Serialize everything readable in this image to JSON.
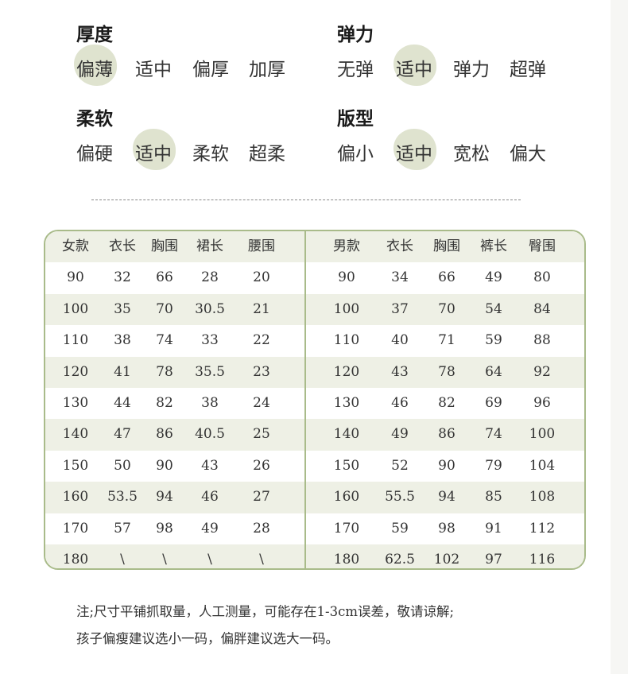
{
  "attributes": [
    {
      "title": "厚度",
      "options": [
        "偏薄",
        "适中",
        "偏厚",
        "加厚"
      ],
      "selected": 0
    },
    {
      "title": "弹力",
      "options": [
        "无弹",
        "适中",
        "弹力",
        "超弹"
      ],
      "selected": 1
    },
    {
      "title": "柔软",
      "options": [
        "偏硬",
        "适中",
        "柔软",
        "超柔"
      ],
      "selected": 1
    },
    {
      "title": "版型",
      "options": [
        "偏小",
        "适中",
        "宽松",
        "偏大"
      ],
      "selected": 1
    }
  ],
  "colors": {
    "highlight": "#dfe3cf",
    "border": "#a9bb8a",
    "stripe": "#eef0e5"
  },
  "women": {
    "headers": [
      "女款",
      "衣长",
      "胸围",
      "裙长",
      "腰围"
    ],
    "rows": [
      [
        "90",
        "32",
        "66",
        "28",
        "20"
      ],
      [
        "100",
        "35",
        "70",
        "30.5",
        "21"
      ],
      [
        "110",
        "38",
        "74",
        "33",
        "22"
      ],
      [
        "120",
        "41",
        "78",
        "35.5",
        "23"
      ],
      [
        "130",
        "44",
        "82",
        "38",
        "24"
      ],
      [
        "140",
        "47",
        "86",
        "40.5",
        "25"
      ],
      [
        "150",
        "50",
        "90",
        "43",
        "26"
      ],
      [
        "160",
        "53.5",
        "94",
        "46",
        "27"
      ],
      [
        "170",
        "57",
        "98",
        "49",
        "28"
      ],
      [
        "180",
        "\\",
        "\\",
        "\\",
        "\\"
      ]
    ]
  },
  "men": {
    "headers": [
      "男款",
      "衣长",
      "胸围",
      "裤长",
      "臀围"
    ],
    "rows": [
      [
        "90",
        "34",
        "66",
        "49",
        "80"
      ],
      [
        "100",
        "37",
        "70",
        "54",
        "84"
      ],
      [
        "110",
        "40",
        "71",
        "59",
        "88"
      ],
      [
        "120",
        "43",
        "78",
        "64",
        "92"
      ],
      [
        "130",
        "46",
        "82",
        "69",
        "96"
      ],
      [
        "140",
        "49",
        "86",
        "74",
        "100"
      ],
      [
        "150",
        "52",
        "90",
        "79",
        "104"
      ],
      [
        "160",
        "55.5",
        "94",
        "85",
        "108"
      ],
      [
        "170",
        "59",
        "98",
        "91",
        "112"
      ],
      [
        "180",
        "62.5",
        "102",
        "97",
        "116"
      ]
    ]
  },
  "notes": [
    "注;尺寸平铺抓取量，人工测量，可能存在1-3cm误差，敬请谅解;",
    "孩子偏瘦建议选小一码，偏胖建议选大一码。"
  ]
}
